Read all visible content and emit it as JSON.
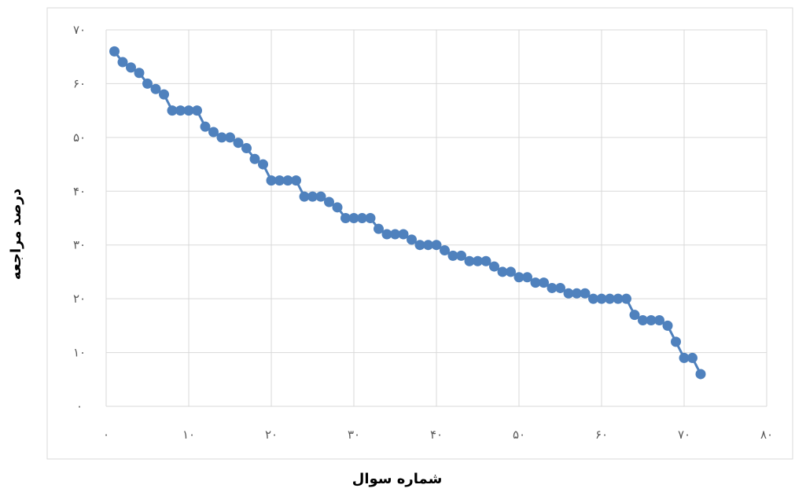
{
  "chart_data": {
    "type": "line",
    "xlabel": "شماره سوال",
    "ylabel": "درصد مراجعه",
    "xlim": [
      0,
      80
    ],
    "ylim": [
      0,
      70
    ],
    "x_ticks": [
      0,
      10,
      20,
      30,
      40,
      50,
      60,
      70,
      80
    ],
    "y_ticks": [
      0,
      10,
      20,
      30,
      40,
      50,
      60,
      70
    ],
    "x_tick_labels": [
      "۰",
      "۱۰",
      "۲۰",
      "۳۰",
      "۴۰",
      "۵۰",
      "۶۰",
      "۷۰",
      "۸۰"
    ],
    "y_tick_labels": [
      "۰",
      "۱۰",
      "۲۰",
      "۳۰",
      "۴۰",
      "۵۰",
      "۶۰",
      "۷۰"
    ],
    "grid": true,
    "marker": "circle",
    "color": "#4f81bd",
    "series": [
      {
        "x": [
          1,
          2,
          3,
          4,
          5,
          6,
          7,
          8,
          9,
          10,
          11,
          12,
          13,
          14,
          15,
          16,
          17,
          18,
          19,
          20,
          21,
          22,
          23,
          24,
          25,
          26,
          27,
          28,
          29,
          30,
          31,
          32,
          33,
          34,
          35,
          36,
          37,
          38,
          39,
          40,
          41,
          42,
          43,
          44,
          45,
          46,
          47,
          48,
          49,
          50,
          51,
          52,
          53,
          54,
          55,
          56,
          57,
          58,
          59,
          60,
          61,
          62,
          63,
          64,
          65,
          66,
          67,
          68,
          69,
          70,
          71,
          72
        ],
        "values": [
          66,
          64,
          63,
          62,
          60,
          59,
          58,
          55,
          55,
          55,
          55,
          52,
          51,
          50,
          50,
          49,
          48,
          46,
          45,
          42,
          42,
          42,
          42,
          39,
          39,
          39,
          38,
          37,
          35,
          35,
          35,
          35,
          33,
          32,
          32,
          32,
          31,
          30,
          30,
          30,
          29,
          28,
          28,
          27,
          27,
          27,
          26,
          25,
          25,
          24,
          24,
          23,
          23,
          22,
          22,
          21,
          21,
          21,
          20,
          20,
          20,
          20,
          20,
          17,
          16,
          16,
          16,
          15,
          12,
          9,
          9,
          6
        ]
      }
    ]
  }
}
